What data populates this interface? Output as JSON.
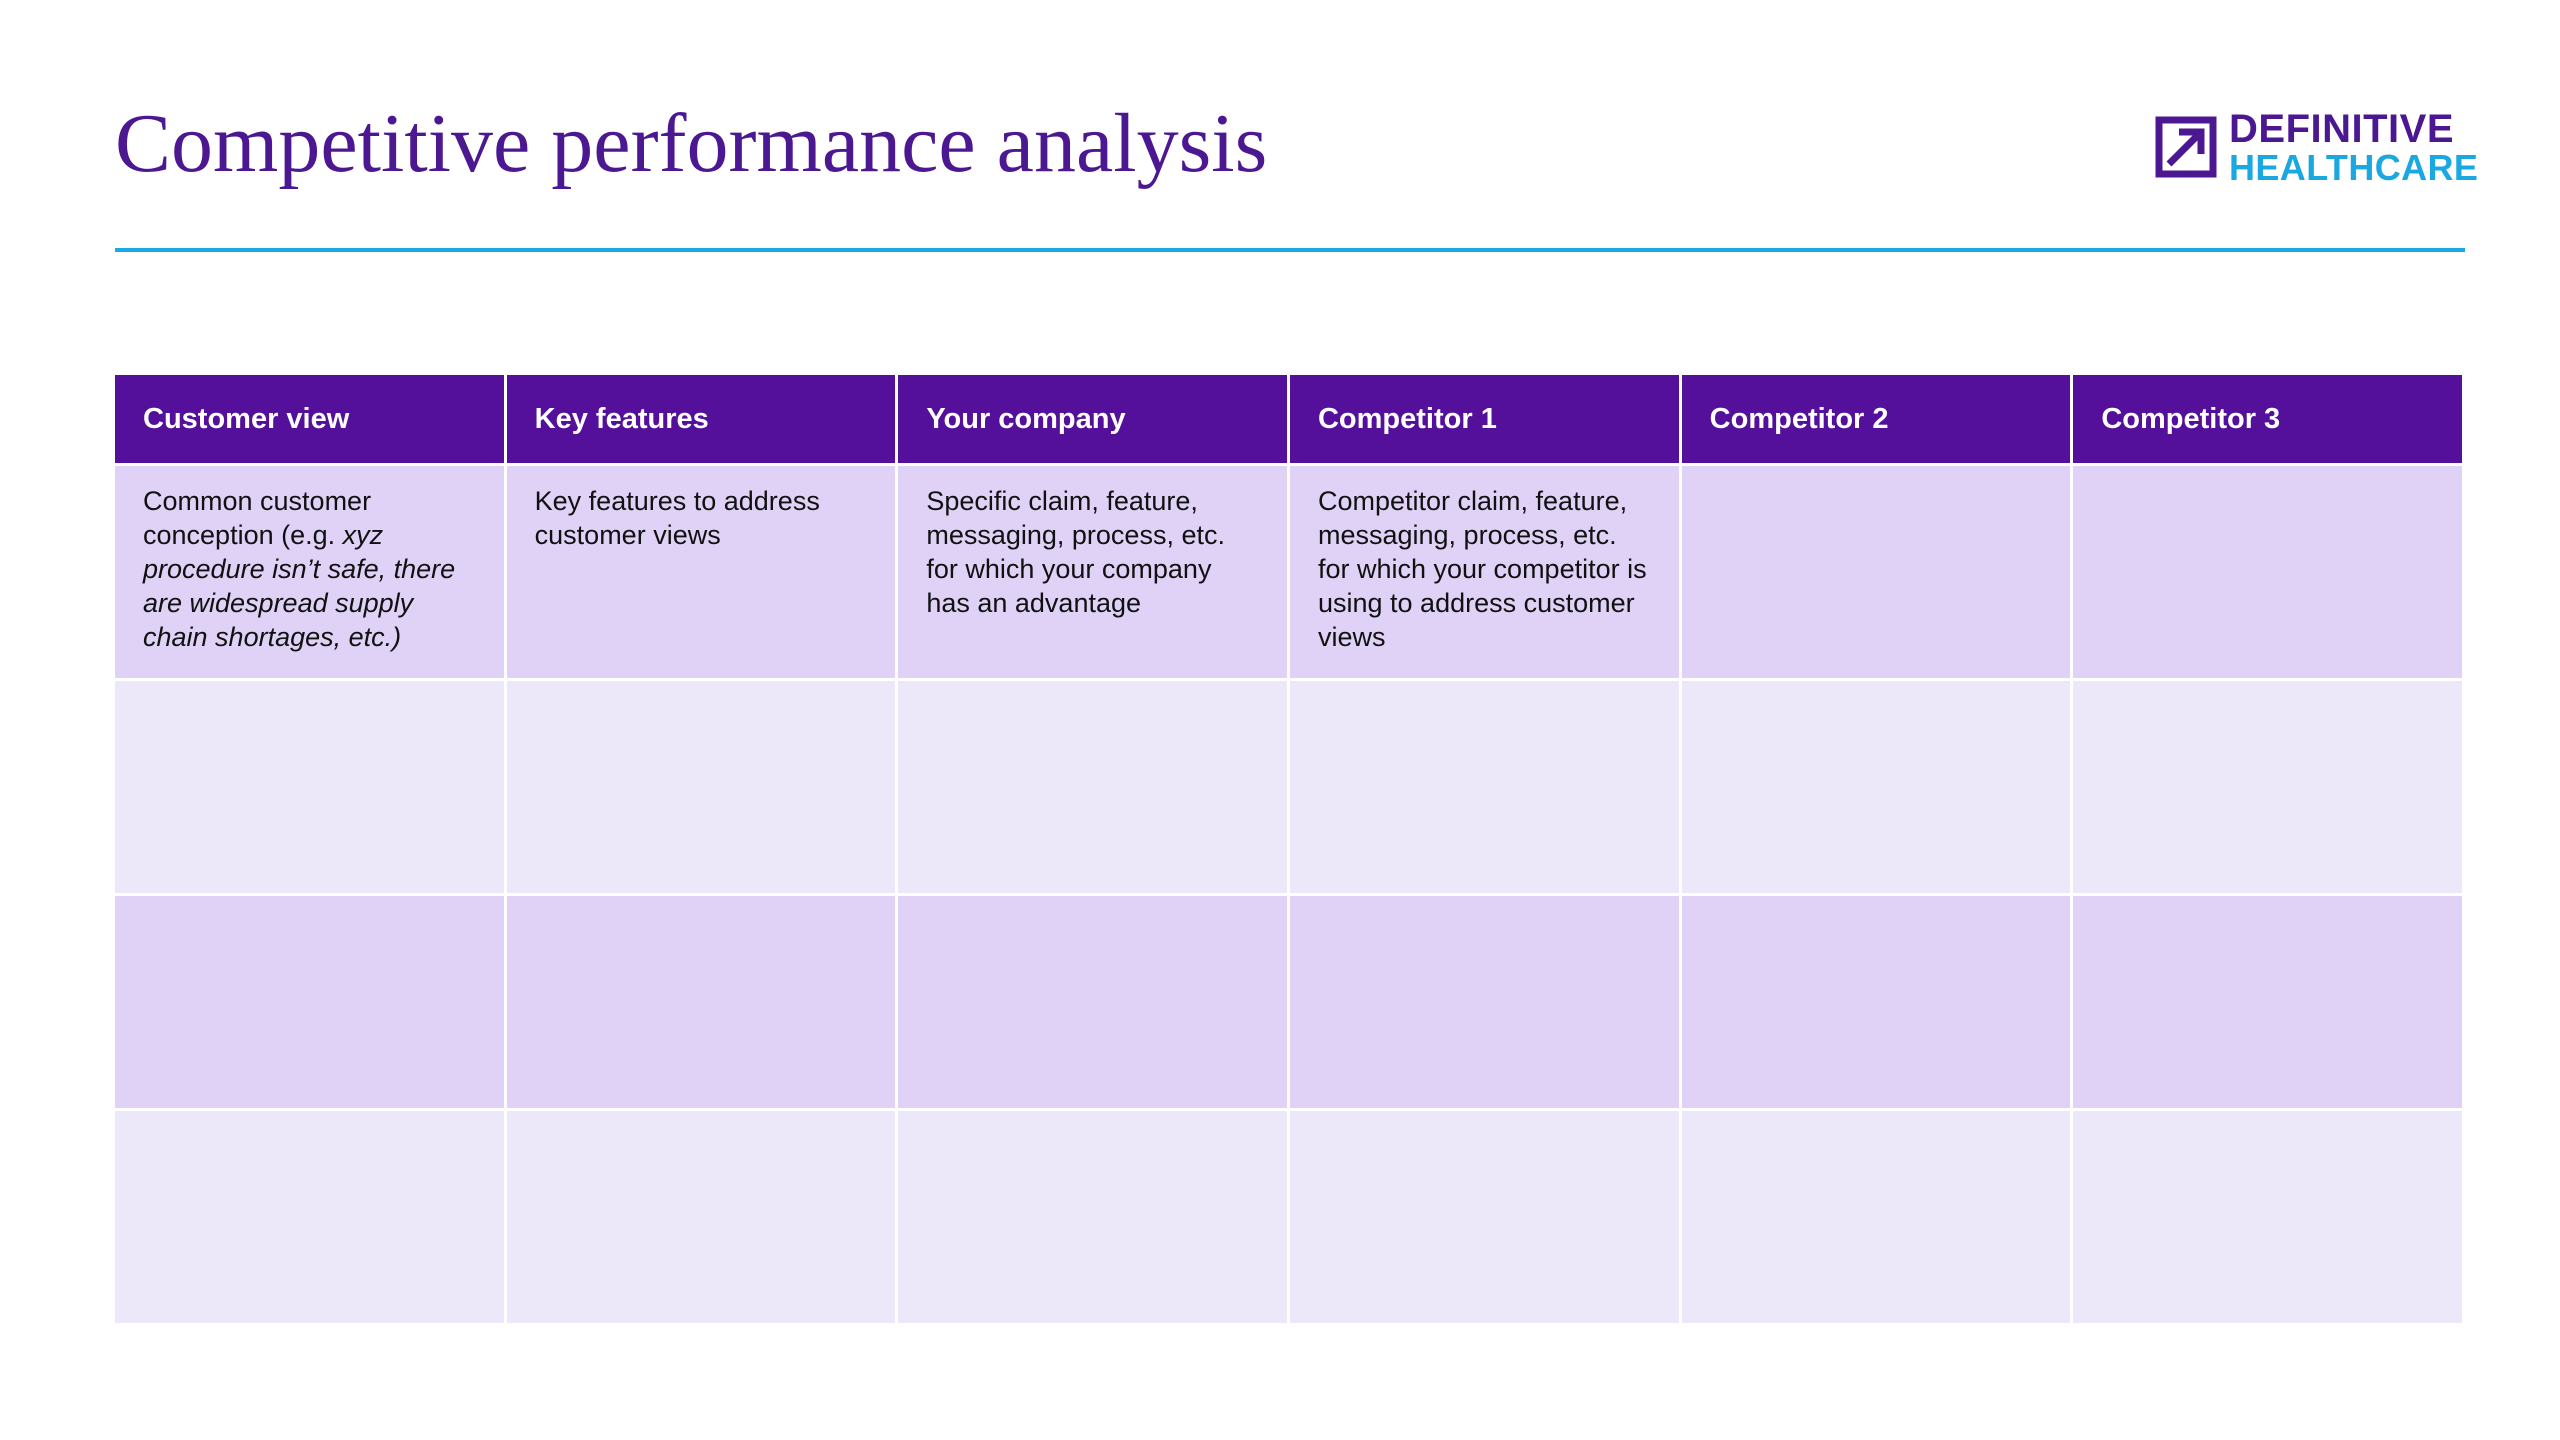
{
  "header": {
    "title": "Competitive performance analysis",
    "logo": {
      "line1": "DEFINITIVE",
      "line2": "HEALTHCARE",
      "icon": "arrow-square-icon"
    }
  },
  "colors": {
    "title": "#4b1892",
    "accent_rule": "#1ba8e0",
    "header_fill": "#54109a",
    "row_dark": "#dfd2f6",
    "row_light": "#ede8f9"
  },
  "table": {
    "columns": [
      "Customer view",
      "Key features",
      "Your company",
      "Competitor 1",
      "Competitor 2",
      "Competitor 3"
    ],
    "rows": [
      {
        "customer_view": {
          "part1": "Common customer conception (e.g. ",
          "part2": "xyz procedure isn’t safe, there are widespread supply chain shortages, etc.)"
        },
        "key_features": "Key features to address customer views",
        "your_company": "Specific claim, feature, messaging, process, etc. for which your company has an advantage",
        "competitor_1": "Competitor claim, feature, messaging, process, etc. for which your competitor is using to address customer views",
        "competitor_2": "",
        "competitor_3": ""
      },
      {
        "customer_view": "",
        "key_features": "",
        "your_company": "",
        "competitor_1": "",
        "competitor_2": "",
        "competitor_3": ""
      },
      {
        "customer_view": "",
        "key_features": "",
        "your_company": "",
        "competitor_1": "",
        "competitor_2": "",
        "competitor_3": ""
      },
      {
        "customer_view": "",
        "key_features": "",
        "your_company": "",
        "competitor_1": "",
        "competitor_2": "",
        "competitor_3": ""
      }
    ]
  }
}
